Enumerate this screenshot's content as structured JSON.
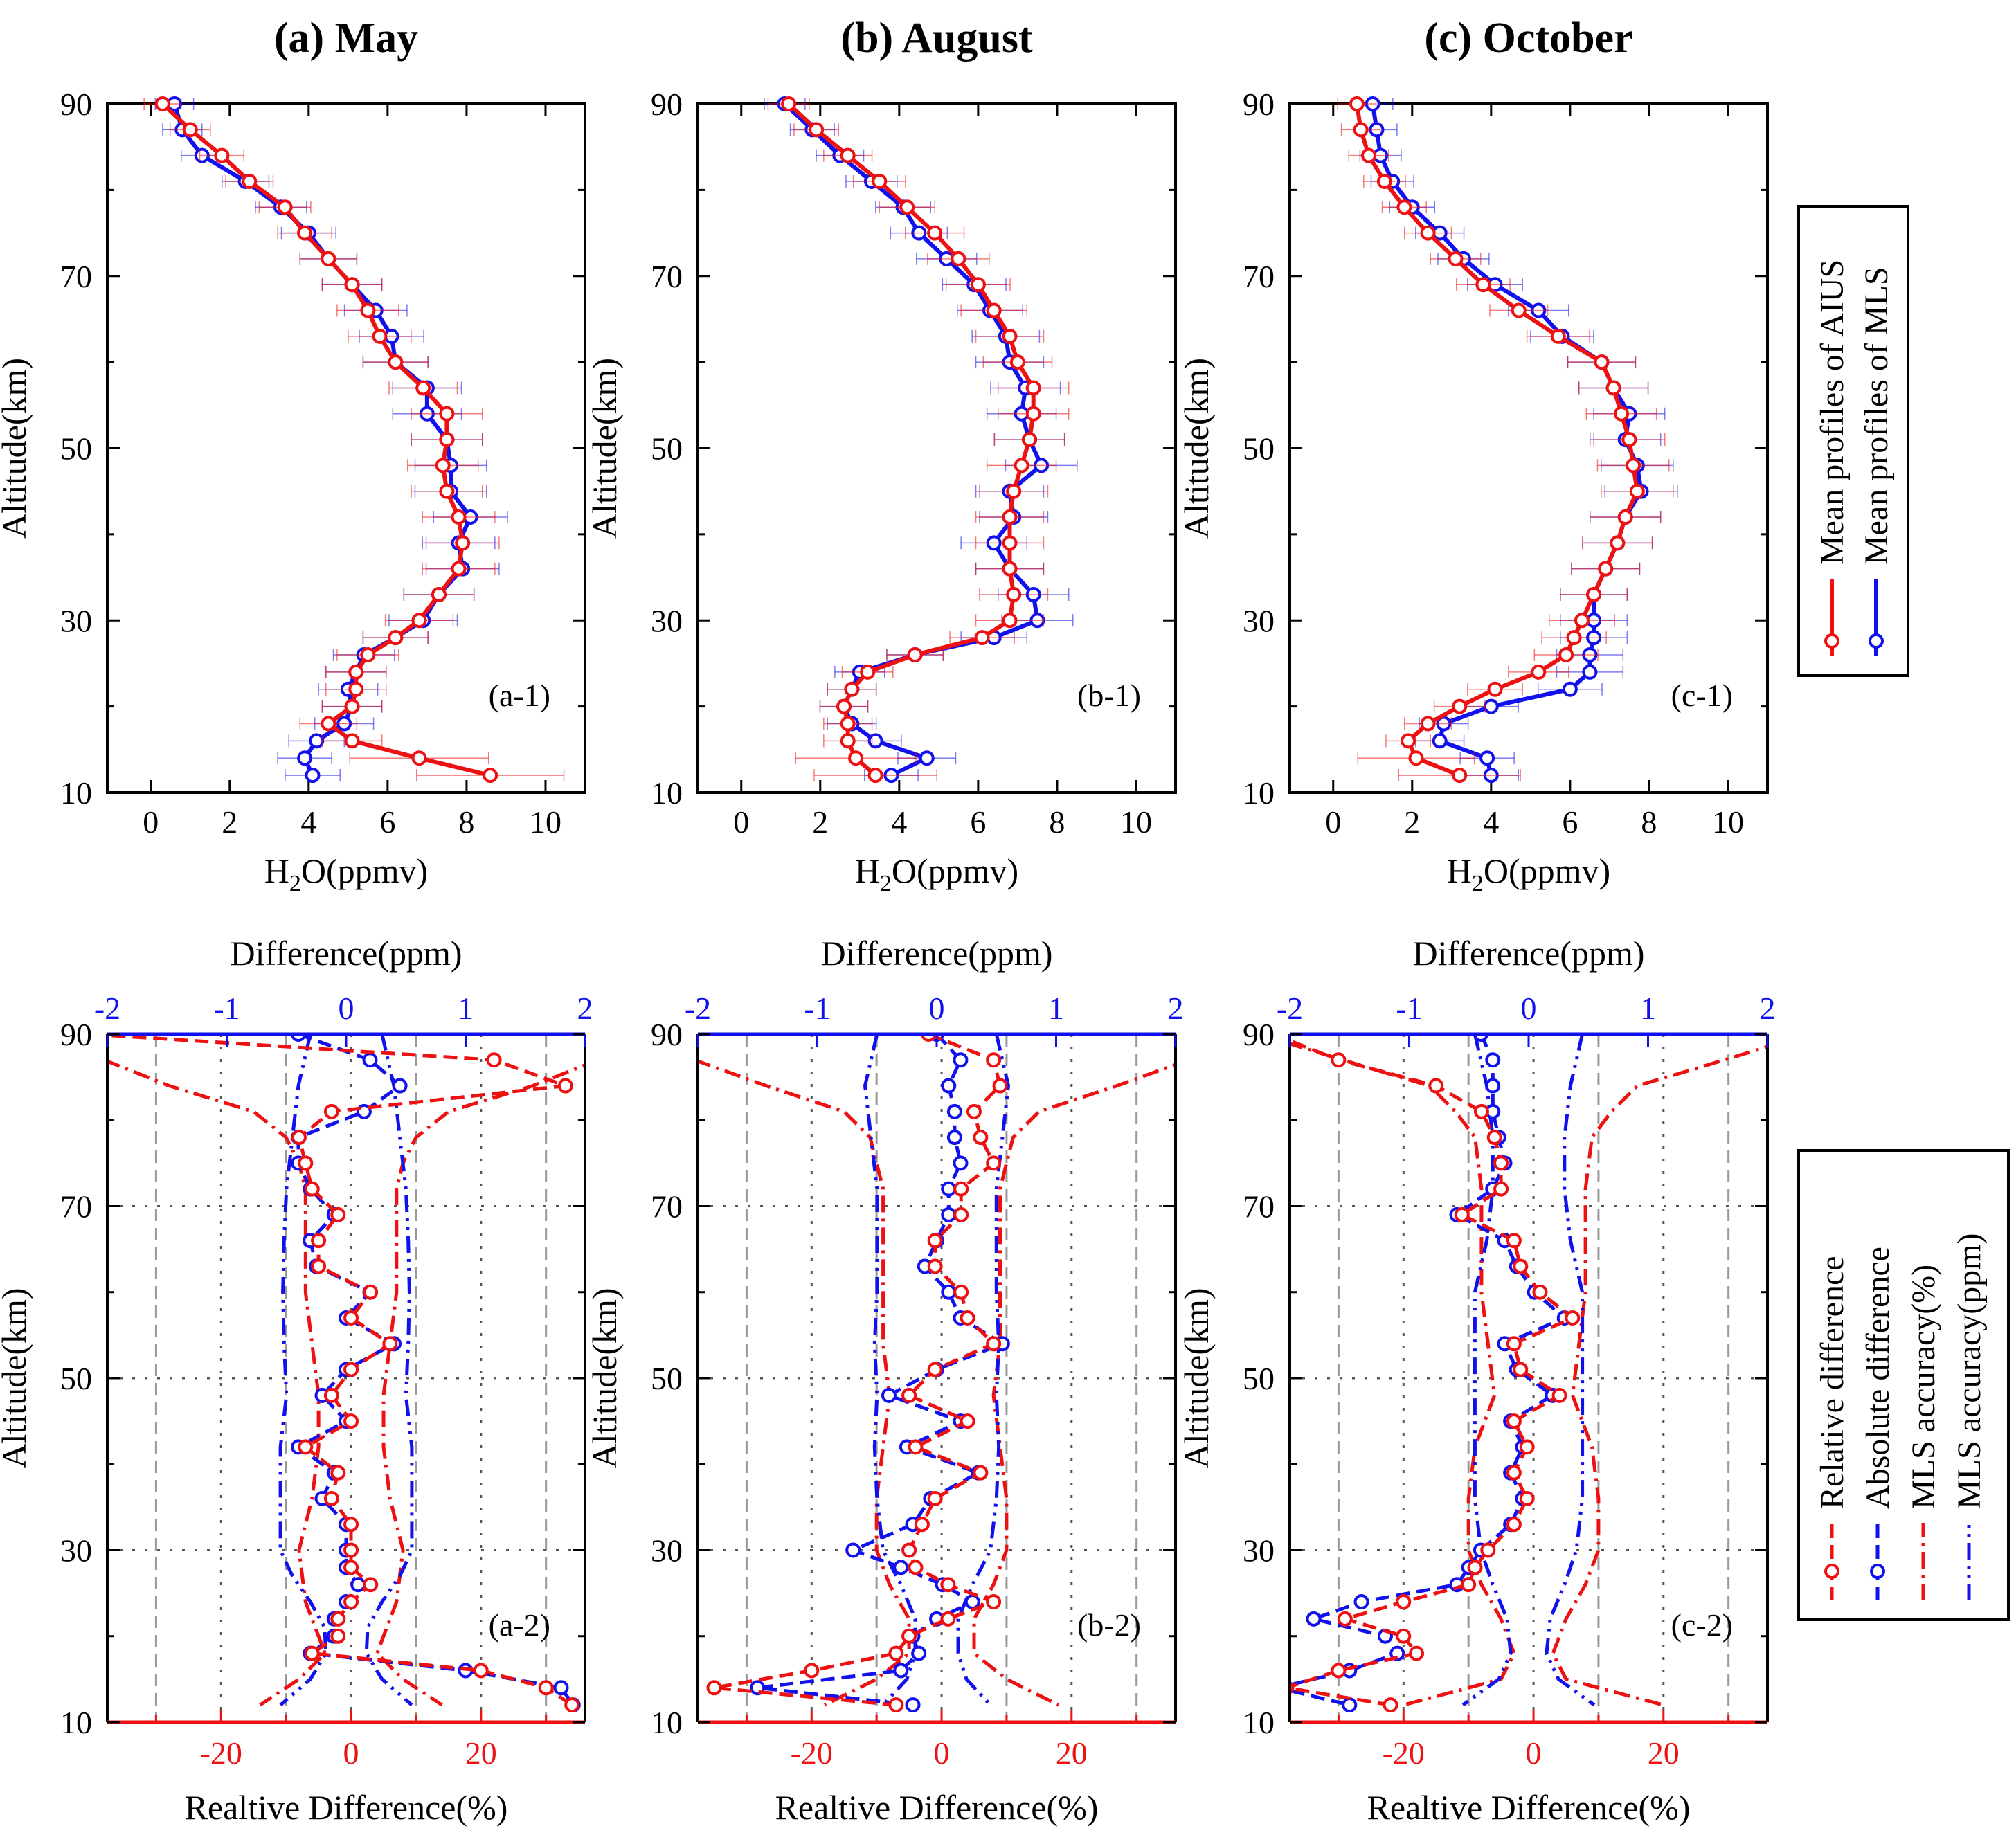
{
  "colors": {
    "aius": "#ee1111",
    "mls": "#1111ee",
    "axis": "#000000",
    "grid": "#808080"
  },
  "labels": {
    "altitude": "Altitude(km)",
    "h2o_prefix": "H",
    "h2o_sub": "2",
    "h2o_suffix": "O(ppmv)",
    "difference": "Difference(ppm)",
    "relative": "Realtive Difference(%)"
  },
  "legend_top": [
    "Mean profiles of AIUS",
    "Mean profiles of MLS"
  ],
  "legend_bottom": [
    "Relative difference",
    "Absolute difference",
    "MLS accuracy(%)",
    "MLS accuracy(ppm)"
  ],
  "chart_data": [
    {
      "title": "(a) May",
      "panel_top": "(a-1)",
      "panel_bottom": "(a-2)",
      "altitude": [
        90,
        87,
        84,
        81,
        78,
        75,
        72,
        69,
        66,
        63,
        60,
        57,
        54,
        51,
        48,
        45,
        42,
        39,
        36,
        33,
        30,
        28,
        26,
        24,
        22,
        20,
        18,
        16,
        14,
        12
      ],
      "aius": [
        0.3,
        1,
        1.8,
        2.5,
        3.4,
        3.9,
        4.5,
        5.1,
        5.5,
        5.8,
        6.2,
        6.9,
        7.5,
        7.5,
        7.4,
        7.5,
        7.8,
        7.9,
        7.8,
        7.3,
        6.8,
        6.2,
        5.5,
        5.2,
        5.2,
        5.1,
        4.5,
        5.1,
        6.8,
        8.6
      ],
      "mls": [
        0.6,
        0.8,
        1.3,
        2.4,
        3.3,
        4,
        4.5,
        5.1,
        5.7,
        6.1,
        6.2,
        7,
        7,
        7.5,
        7.6,
        7.6,
        8.1,
        7.8,
        7.9,
        7.3,
        6.9,
        6.2,
        5.4,
        5.2,
        5,
        5.1,
        4.9,
        4.2,
        3.9,
        4.1
      ],
      "rel": [
        -40,
        22,
        33,
        -3,
        -8,
        -7,
        -6,
        -2,
        -5,
        -5,
        3,
        0,
        6,
        0,
        -3,
        0,
        -7,
        -2,
        -3,
        0,
        0,
        0,
        3,
        0,
        -2,
        -2,
        -6,
        20,
        30,
        34
      ],
      "absd": [
        -0.4,
        0.2,
        0.45,
        0.15,
        -0.4,
        -0.4,
        -0.3,
        -0.1,
        -0.3,
        -0.25,
        0.2,
        0,
        0.4,
        0,
        -0.2,
        0,
        -0.4,
        -0.1,
        -0.2,
        0,
        0,
        0,
        0.1,
        0,
        -0.1,
        -0.1,
        -0.3,
        1,
        1.8,
        1.9
      ],
      "acc_pct": [
        [
          87,
          38
        ],
        [
          84,
          28
        ],
        [
          81,
          15
        ],
        [
          78,
          10
        ],
        [
          75,
          8
        ],
        [
          72,
          7
        ],
        [
          60,
          7
        ],
        [
          54,
          6
        ],
        [
          48,
          5
        ],
        [
          42,
          5
        ],
        [
          36,
          6
        ],
        [
          30,
          8
        ],
        [
          24,
          7
        ],
        [
          20,
          5
        ],
        [
          18,
          4
        ],
        [
          15,
          8
        ],
        [
          12,
          14
        ]
      ],
      "acc_ppm": [
        [
          90,
          0.3
        ],
        [
          87,
          0.35
        ],
        [
          84,
          0.4
        ],
        [
          78,
          0.45
        ],
        [
          72,
          0.5
        ],
        [
          66,
          0.52
        ],
        [
          60,
          0.53
        ],
        [
          54,
          0.52
        ],
        [
          48,
          0.5
        ],
        [
          42,
          0.55
        ],
        [
          36,
          0.55
        ],
        [
          30,
          0.55
        ],
        [
          27,
          0.45
        ],
        [
          24,
          0.3
        ],
        [
          21,
          0.18
        ],
        [
          18,
          0.17
        ],
        [
          15,
          0.3
        ],
        [
          12,
          0.55
        ]
      ]
    },
    {
      "title": "(b) August",
      "panel_top": "(b-1)",
      "panel_bottom": "(b-2)",
      "altitude": [
        90,
        87,
        84,
        81,
        78,
        75,
        72,
        69,
        66,
        63,
        60,
        57,
        54,
        51,
        48,
        45,
        42,
        39,
        36,
        33,
        30,
        28,
        26,
        24,
        22,
        20,
        18,
        16,
        14,
        12
      ],
      "aius": [
        1.2,
        1.9,
        2.7,
        3.5,
        4.2,
        4.9,
        5.5,
        6,
        6.4,
        6.8,
        7,
        7.4,
        7.4,
        7.3,
        7.1,
        6.9,
        6.8,
        6.8,
        6.8,
        6.9,
        6.8,
        6.1,
        4.4,
        3.2,
        2.8,
        2.6,
        2.7,
        2.7,
        2.9,
        3.4
      ],
      "mls": [
        1.1,
        1.8,
        2.5,
        3.3,
        4.1,
        4.5,
        5.2,
        5.9,
        6.3,
        6.7,
        6.8,
        7.2,
        7.1,
        7.3,
        7.6,
        6.8,
        6.9,
        6.4,
        6.8,
        7.4,
        7.5,
        6.4,
        4.4,
        3,
        2.8,
        2.6,
        2.8,
        3.4,
        4.7,
        3.8
      ],
      "rel": [
        -2,
        8,
        9,
        5,
        6,
        8,
        3,
        3,
        -1,
        -1,
        3,
        4,
        8,
        -1,
        -5,
        4,
        -4,
        6,
        -1,
        -3,
        -5,
        -4,
        1,
        8,
        1,
        -5,
        -7,
        -20,
        -35,
        -7
      ],
      "absd": [
        0,
        0.2,
        0.1,
        0.15,
        0.15,
        0.2,
        0.1,
        0.1,
        0,
        -0.1,
        0.1,
        0.2,
        0.55,
        0,
        -0.4,
        0.2,
        -0.25,
        0.35,
        -0.05,
        -0.2,
        -0.7,
        -0.3,
        0.05,
        0.3,
        0,
        -0.2,
        -0.15,
        -0.3,
        -1.5,
        -0.2
      ],
      "acc_pct": [
        [
          87,
          38
        ],
        [
          84,
          27
        ],
        [
          81,
          15
        ],
        [
          78,
          11
        ],
        [
          72,
          9
        ],
        [
          66,
          9
        ],
        [
          60,
          9
        ],
        [
          54,
          9
        ],
        [
          48,
          8
        ],
        [
          42,
          9
        ],
        [
          36,
          10
        ],
        [
          30,
          10
        ],
        [
          26,
          8
        ],
        [
          22,
          5
        ],
        [
          18,
          5
        ],
        [
          15,
          10
        ],
        [
          12,
          18
        ]
      ],
      "acc_ppm": [
        [
          90,
          0.5
        ],
        [
          87,
          0.55
        ],
        [
          84,
          0.6
        ],
        [
          78,
          0.55
        ],
        [
          72,
          0.5
        ],
        [
          60,
          0.5
        ],
        [
          54,
          0.52
        ],
        [
          48,
          0.5
        ],
        [
          42,
          0.52
        ],
        [
          36,
          0.5
        ],
        [
          30,
          0.45
        ],
        [
          26,
          0.3
        ],
        [
          22,
          0.18
        ],
        [
          18,
          0.18
        ],
        [
          15,
          0.25
        ],
        [
          12,
          0.45
        ]
      ]
    },
    {
      "title": "(c) October",
      "panel_top": "(c-1)",
      "panel_bottom": "(c-2)",
      "altitude": [
        90,
        87,
        84,
        81,
        78,
        75,
        72,
        69,
        66,
        63,
        60,
        57,
        54,
        51,
        48,
        45,
        42,
        39,
        36,
        33,
        30,
        28,
        26,
        24,
        22,
        20,
        18,
        16,
        14,
        12
      ],
      "aius": [
        0.6,
        0.7,
        0.9,
        1.3,
        1.8,
        2.4,
        3.1,
        3.8,
        4.7,
        5.7,
        6.8,
        7.1,
        7.3,
        7.5,
        7.6,
        7.7,
        7.4,
        7.2,
        6.9,
        6.6,
        6.3,
        6.1,
        5.9,
        5.2,
        4.1,
        3.2,
        2.4,
        1.9,
        2.1,
        3.2
      ],
      "mls": [
        1,
        1.1,
        1.2,
        1.5,
        2,
        2.7,
        3.3,
        4.1,
        5.2,
        5.8,
        6.8,
        7.1,
        7.5,
        7.4,
        7.7,
        7.8,
        7.4,
        7.2,
        6.9,
        6.6,
        6.6,
        6.6,
        6.5,
        6.5,
        6,
        4,
        2.8,
        2.7,
        3.9,
        4
      ],
      "rel": [
        -40,
        -30,
        -15,
        -8,
        -6,
        -5,
        -5,
        -11,
        -3,
        -2,
        1,
        6,
        -3,
        -2,
        4,
        -3,
        -1,
        -3,
        -1,
        -3,
        -7,
        -9,
        -10,
        -20,
        -29,
        -20,
        -18,
        -30,
        -38,
        -22
      ],
      "absd": [
        -0.4,
        -0.3,
        -0.3,
        -0.3,
        -0.25,
        -0.2,
        -0.3,
        -0.6,
        -0.2,
        -0.1,
        0.05,
        0.3,
        -0.2,
        -0.1,
        0.2,
        -0.15,
        -0.05,
        -0.15,
        -0.05,
        -0.15,
        -0.4,
        -0.5,
        -0.6,
        -1.4,
        -1.8,
        -1.2,
        -1.1,
        -1.5,
        -2.1,
        -1.5
      ],
      "acc_pct": [
        [
          89,
          38
        ],
        [
          86,
          25
        ],
        [
          84,
          16
        ],
        [
          81,
          12
        ],
        [
          78,
          9
        ],
        [
          72,
          8
        ],
        [
          66,
          8
        ],
        [
          60,
          8
        ],
        [
          54,
          7
        ],
        [
          48,
          6
        ],
        [
          42,
          9
        ],
        [
          36,
          10
        ],
        [
          30,
          10
        ],
        [
          26,
          8
        ],
        [
          22,
          5
        ],
        [
          18,
          3
        ],
        [
          15,
          5
        ],
        [
          12,
          20
        ]
      ],
      "acc_ppm": [
        [
          90,
          0.45
        ],
        [
          87,
          0.4
        ],
        [
          84,
          0.35
        ],
        [
          78,
          0.3
        ],
        [
          72,
          0.3
        ],
        [
          66,
          0.35
        ],
        [
          60,
          0.45
        ],
        [
          54,
          0.45
        ],
        [
          48,
          0.45
        ],
        [
          42,
          0.45
        ],
        [
          36,
          0.45
        ],
        [
          30,
          0.4
        ],
        [
          26,
          0.3
        ],
        [
          22,
          0.18
        ],
        [
          18,
          0.15
        ],
        [
          15,
          0.25
        ],
        [
          12,
          0.55
        ]
      ]
    }
  ]
}
